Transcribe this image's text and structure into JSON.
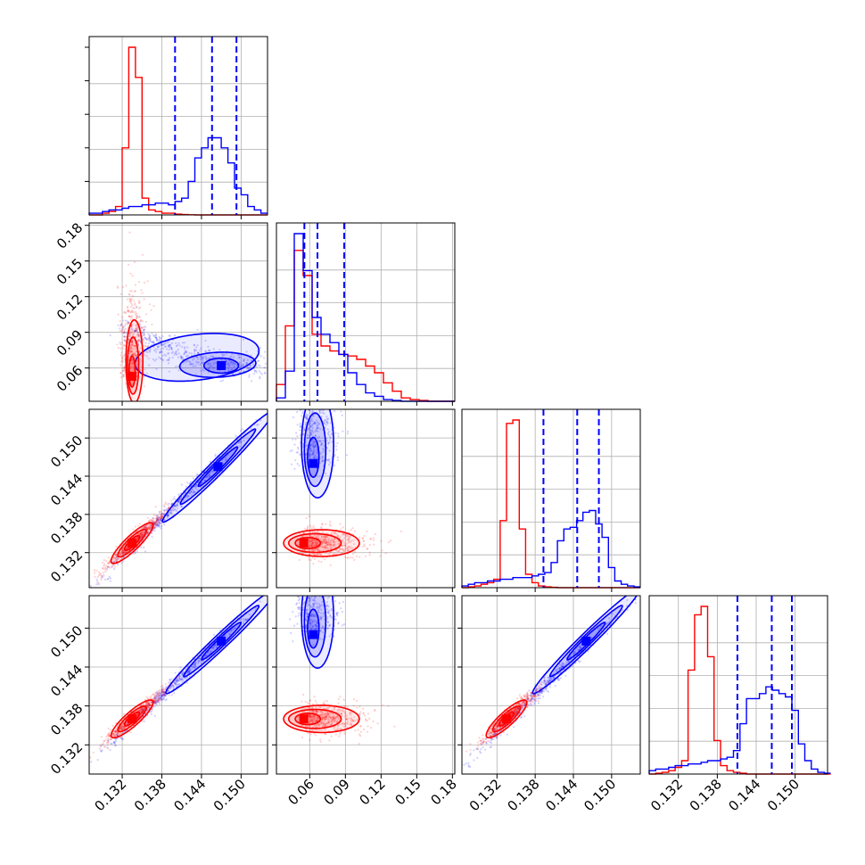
{
  "chart_data": {
    "type": "corner",
    "n_params": 4,
    "grid": true,
    "colors": {
      "series_a": "#ff0000",
      "series_b": "#0000ff",
      "grid": "#b0b0b0",
      "axes": "#000000"
    },
    "series": [
      {
        "key": "red",
        "color": "#ff0000"
      },
      {
        "key": "blue",
        "color": "#0000ff"
      }
    ],
    "params": [
      {
        "range": [
          0.127,
          0.154
        ],
        "ticks": [
          0.132,
          0.138,
          0.144,
          0.15
        ],
        "tick_labels": [
          "0.132",
          "0.138",
          "0.144",
          "0.150"
        ]
      },
      {
        "range": [
          0.032,
          0.182
        ],
        "ticks": [
          0.06,
          0.09,
          0.12,
          0.15,
          0.18
        ],
        "tick_labels": [
          "0.06",
          "0.09",
          "0.12",
          "0.15",
          "0.18"
        ]
      },
      {
        "range": [
          0.1265,
          0.1545
        ],
        "ticks": [
          0.132,
          0.138,
          0.144,
          0.15
        ],
        "tick_labels": [
          "0.132",
          "0.138",
          "0.144",
          "0.150"
        ]
      },
      {
        "range": [
          0.1275,
          0.155
        ],
        "ticks": [
          0.132,
          0.138,
          0.144,
          0.15
        ],
        "tick_labels": [
          "0.132",
          "0.138",
          "0.144",
          "0.150"
        ]
      }
    ],
    "histograms": [
      {
        "param": 0,
        "bins": [
          0.127,
          0.128,
          0.129,
          0.13,
          0.131,
          0.132,
          0.133,
          0.134,
          0.135,
          0.136,
          0.137,
          0.138,
          0.139,
          0.14,
          0.141,
          0.142,
          0.143,
          0.144,
          0.145,
          0.146,
          0.147,
          0.148,
          0.149,
          0.15,
          0.151,
          0.152,
          0.153,
          0.154
        ],
        "red": [
          0,
          0,
          0.01,
          0.02,
          0.05,
          0.4,
          1.0,
          0.82,
          0.1,
          0.03,
          0.02,
          0.01,
          0.01,
          0.005,
          0.002,
          0.001,
          0,
          0,
          0,
          0,
          0,
          0,
          0,
          0,
          0,
          0,
          0
        ],
        "blue": [
          0.01,
          0.01,
          0.02,
          0.03,
          0.03,
          0.04,
          0.05,
          0.05,
          0.06,
          0.06,
          0.07,
          0.07,
          0.06,
          0.08,
          0.1,
          0.2,
          0.34,
          0.4,
          0.46,
          0.46,
          0.4,
          0.31,
          0.16,
          0.12,
          0.05,
          0.03,
          0.01
        ],
        "quantiles": [
          0.14,
          0.1456,
          0.1493
        ]
      },
      {
        "param": 1,
        "bins": [
          0.032,
          0.0395,
          0.047,
          0.0545,
          0.062,
          0.0695,
          0.077,
          0.0845,
          0.092,
          0.0995,
          0.107,
          0.1145,
          0.122,
          0.1295,
          0.137,
          0.1445,
          0.152,
          0.1595,
          0.167,
          0.1745,
          0.182
        ],
        "red": [
          0.1,
          0.45,
          0.9,
          0.75,
          0.4,
          0.33,
          0.3,
          0.28,
          0.27,
          0.25,
          0.21,
          0.17,
          0.11,
          0.06,
          0.02,
          0.01,
          0.005,
          0,
          0,
          0
        ],
        "blue": [
          0.02,
          0.18,
          1.0,
          0.78,
          0.5,
          0.4,
          0.35,
          0.28,
          0.17,
          0.1,
          0.05,
          0.03,
          0.01,
          0.005,
          0,
          0,
          0,
          0,
          0,
          0
        ],
        "quantiles": [
          0.0555,
          0.0665,
          0.089
        ]
      },
      {
        "param": 2,
        "bins": [
          0.1265,
          0.1275,
          0.1285,
          0.1295,
          0.1305,
          0.1315,
          0.1325,
          0.1335,
          0.1345,
          0.1355,
          0.1365,
          0.1375,
          0.1385,
          0.1395,
          0.1405,
          0.1415,
          0.1425,
          0.1435,
          0.1445,
          0.1455,
          0.1465,
          0.1475,
          0.1485,
          0.1495,
          0.1505,
          0.1515,
          0.1525,
          0.1535,
          0.1545
        ],
        "red": [
          0,
          0.005,
          0.01,
          0.02,
          0.03,
          0.05,
          0.4,
          0.98,
          1.0,
          0.35,
          0.08,
          0.03,
          0.01,
          0.005,
          0.002,
          0,
          0,
          0,
          0,
          0,
          0,
          0,
          0,
          0,
          0,
          0,
          0,
          0
        ],
        "blue": [
          0.01,
          0.02,
          0.03,
          0.03,
          0.04,
          0.04,
          0.05,
          0.05,
          0.06,
          0.06,
          0.06,
          0.07,
          0.08,
          0.09,
          0.15,
          0.28,
          0.35,
          0.36,
          0.4,
          0.45,
          0.46,
          0.38,
          0.3,
          0.12,
          0.04,
          0.02,
          0.01,
          0.005
        ],
        "quantiles": [
          0.1393,
          0.1446,
          0.148
        ]
      },
      {
        "param": 3,
        "bins": [
          0.1275,
          0.1285,
          0.1295,
          0.1305,
          0.1315,
          0.1325,
          0.1335,
          0.1345,
          0.1355,
          0.1365,
          0.1375,
          0.1385,
          0.1395,
          0.1405,
          0.1415,
          0.1425,
          0.1435,
          0.1445,
          0.1455,
          0.1465,
          0.1475,
          0.1485,
          0.1495,
          0.1505,
          0.1515,
          0.1525,
          0.1535,
          0.1545,
          0.1555
        ],
        "red": [
          0,
          0.005,
          0.01,
          0.02,
          0.04,
          0.08,
          0.62,
          0.95,
          1.0,
          0.7,
          0.2,
          0.05,
          0.02,
          0.01,
          0.005,
          0,
          0,
          0,
          0,
          0,
          0,
          0,
          0,
          0,
          0,
          0,
          0,
          0
        ],
        "blue": [
          0.02,
          0.03,
          0.03,
          0.04,
          0.05,
          0.05,
          0.06,
          0.06,
          0.07,
          0.08,
          0.08,
          0.09,
          0.1,
          0.14,
          0.3,
          0.45,
          0.45,
          0.48,
          0.52,
          0.5,
          0.48,
          0.46,
          0.38,
          0.18,
          0.08,
          0.03,
          0.01,
          0.005
        ],
        "quantiles": [
          0.1411,
          0.1464,
          0.1495
        ]
      }
    ],
    "pairs": [
      {
        "row": 1,
        "col": 0,
        "red": {
          "mode": [
            0.1335,
            0.053
          ],
          "extent": [
            [
              0.1308,
              0.1365
            ],
            [
              0.04,
              0.14
            ]
          ],
          "shape": "vertical"
        },
        "blue": {
          "mode": [
            0.147,
            0.062
          ],
          "extent": [
            [
              0.132,
              0.153
            ],
            [
              0.045,
              0.115
            ]
          ],
          "shape": "banana"
        }
      },
      {
        "row": 2,
        "col": 0,
        "red": {
          "mode": [
            0.1335,
            0.1335
          ],
          "extent": [
            [
              0.129,
              0.139
            ],
            [
              0.129,
              0.139
            ]
          ],
          "shape": "diagonal"
        },
        "blue": {
          "mode": [
            0.1465,
            0.1455
          ],
          "extent": [
            [
              0.127,
              0.154
            ],
            [
              0.126,
              0.154
            ]
          ],
          "shape": "diagonal"
        }
      },
      {
        "row": 2,
        "col": 1,
        "red": {
          "mode": [
            0.055,
            0.1335
          ],
          "extent": [
            [
              0.045,
              0.13
            ],
            [
              0.13,
              0.137
            ]
          ],
          "shape": "horizontal"
        },
        "blue": {
          "mode": [
            0.063,
            0.146
          ],
          "extent": [
            [
              0.045,
              0.105
            ],
            [
              0.128,
              0.152
            ]
          ],
          "shape": "vertical"
        }
      },
      {
        "row": 3,
        "col": 0,
        "red": {
          "mode": [
            0.1335,
            0.136
          ],
          "extent": [
            [
              0.129,
              0.139
            ],
            [
              0.132,
              0.141
            ]
          ],
          "shape": "diagonal"
        },
        "blue": {
          "mode": [
            0.147,
            0.148
          ],
          "extent": [
            [
              0.127,
              0.154
            ],
            [
              0.129,
              0.155
            ]
          ],
          "shape": "diagonal"
        }
      },
      {
        "row": 3,
        "col": 1,
        "red": {
          "mode": [
            0.055,
            0.136
          ],
          "extent": [
            [
              0.045,
              0.13
            ],
            [
              0.133,
              0.14
            ]
          ],
          "shape": "horizontal"
        },
        "blue": {
          "mode": [
            0.063,
            0.149
          ],
          "extent": [
            [
              0.045,
              0.105
            ],
            [
              0.131,
              0.154
            ]
          ],
          "shape": "vertical"
        }
      },
      {
        "row": 3,
        "col": 2,
        "red": {
          "mode": [
            0.1335,
            0.136
          ],
          "extent": [
            [
              0.129,
              0.139
            ],
            [
              0.132,
              0.141
            ]
          ],
          "shape": "diagonal"
        },
        "blue": {
          "mode": [
            0.146,
            0.148
          ],
          "extent": [
            [
              0.127,
              0.154
            ],
            [
              0.129,
              0.155
            ]
          ],
          "shape": "diagonal"
        }
      }
    ]
  }
}
